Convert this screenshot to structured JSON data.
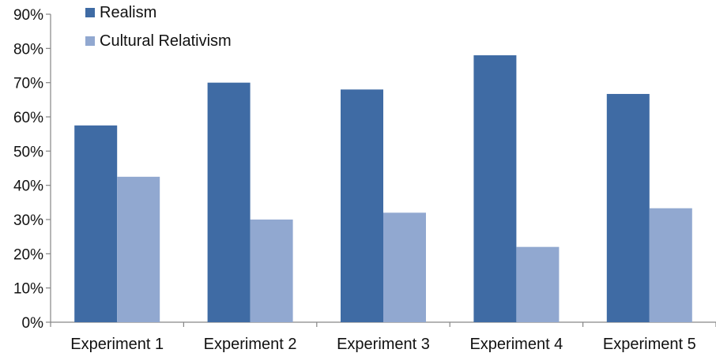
{
  "chart_data": {
    "type": "bar",
    "title": "",
    "xlabel": "",
    "ylabel": "",
    "categories": [
      "Experiment 1",
      "Experiment 2",
      "Experiment 3",
      "Experiment 4",
      "Experiment 5"
    ],
    "series": [
      {
        "name": "Realism",
        "color": "#3F6BA4",
        "values": [
          57.5,
          70,
          68,
          78,
          66.7
        ]
      },
      {
        "name": "Cultural Relativism",
        "color": "#91A8D0",
        "values": [
          42.5,
          30,
          32,
          22,
          33.3
        ]
      }
    ],
    "ylim": [
      0,
      90
    ],
    "yticks": [
      "0%",
      "10%",
      "20%",
      "30%",
      "40%",
      "50%",
      "60%",
      "70%",
      "80%",
      "90%"
    ],
    "grid": false,
    "legend_position": "top-left"
  }
}
